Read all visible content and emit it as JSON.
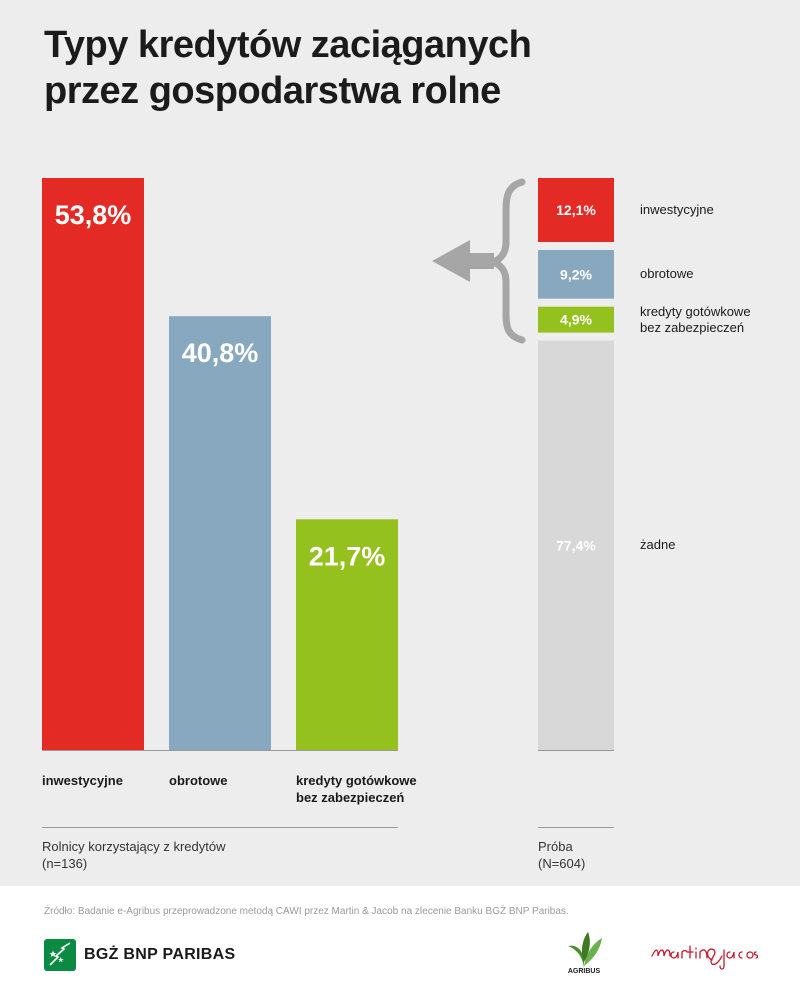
{
  "title": {
    "line1": "Typy kredytów zaciąganych",
    "line2": "przez gospodarstwa rolne"
  },
  "colors": {
    "inwestycyjne": "#e42a25",
    "obrotowe": "#87a8be",
    "gotowkowe": "#95c11f",
    "zadne": "#d8d8d8",
    "arrow": "#a6a6a6",
    "axis": "#999999"
  },
  "chart_data": [
    {
      "type": "bar",
      "categories": [
        "inwestycyjne",
        "obrotowe",
        "kredyty gotówkowe bez zabezpieczeń"
      ],
      "values": [
        53.8,
        40.8,
        21.7
      ],
      "value_labels": [
        "53,8%",
        "40,8%",
        "21,7%"
      ],
      "category_label_lines": [
        [
          "inwestycyjne"
        ],
        [
          "obrotowe"
        ],
        [
          "kredyty gotówkowe",
          "bez zabezpieczeń"
        ]
      ],
      "ylim": [
        0,
        53.8
      ],
      "note_lines": [
        "Rolnicy korzystający z kredytów",
        "(n=136)"
      ]
    },
    {
      "type": "bar",
      "stacked": true,
      "segments": [
        {
          "name": "inwestycyjne",
          "value": 12.1,
          "label": "12,1%",
          "legend_lines": [
            "inwestycyjne"
          ],
          "color_key": "inwestycyjne"
        },
        {
          "name": "obrotowe",
          "value": 9.2,
          "label": "9,2%",
          "legend_lines": [
            "obrotowe"
          ],
          "color_key": "obrotowe"
        },
        {
          "name": "kredyty gotówkowe bez zabezpieczeń",
          "value": 4.9,
          "label": "4,9%",
          "legend_lines": [
            "kredyty gotówkowe",
            "bez zabezpieczeń"
          ],
          "color_key": "gotowkowe"
        },
        {
          "name": "żadne",
          "value": 77.4,
          "label": "77,4%",
          "legend_lines": [
            "żadne"
          ],
          "color_key": "zadne"
        }
      ],
      "note_lines": [
        "Próba",
        "(N=604)"
      ]
    }
  ],
  "footer": {
    "source": "Źródło: Badanie e-Agribus przeprowadzone metodą CAWI przez Martin & Jacob na zlecenie Banku BGŻ BNP Paribas.",
    "bank_logo": "BGŻ BNP PARIBAS",
    "agribus_logo": "AGRIBUS",
    "mj_logo": "martin&jacob"
  }
}
